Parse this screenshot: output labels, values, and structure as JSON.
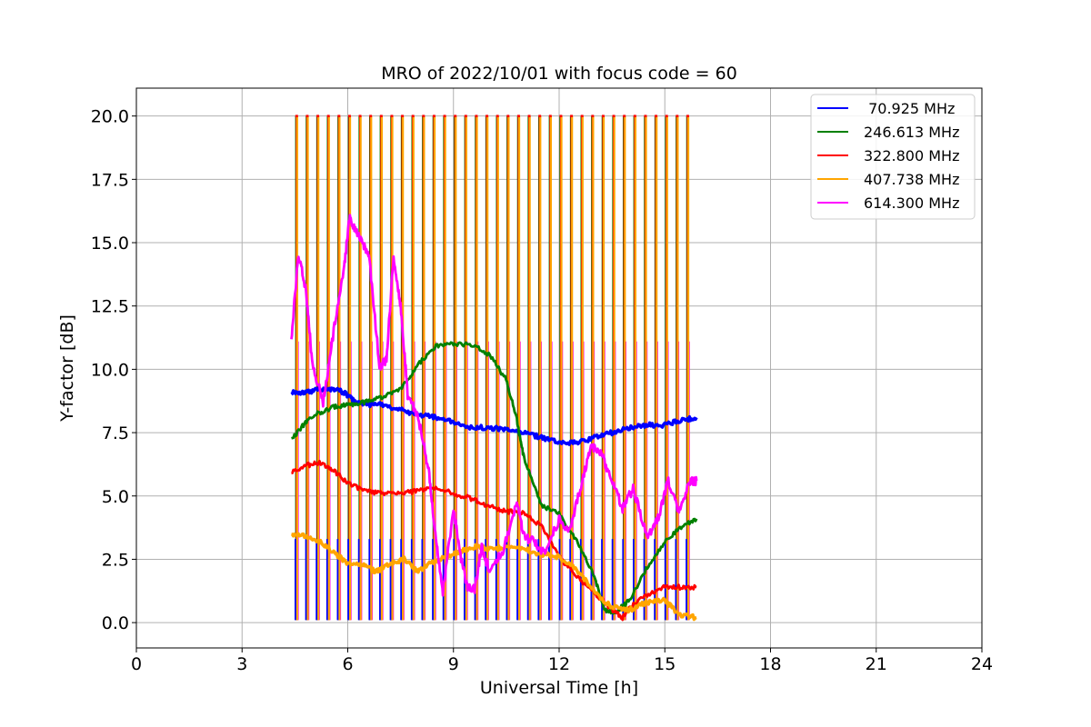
{
  "chart_data": {
    "type": "line",
    "title": "MRO of 2022/10/01 with focus code = 60",
    "xlabel": "Universal Time [h]",
    "ylabel": "Y-factor [dB]",
    "xlim": [
      0,
      24
    ],
    "ylim": [
      -1.0,
      21.1
    ],
    "xticks": [
      0,
      3,
      6,
      9,
      12,
      15,
      18,
      21,
      24
    ],
    "xtick_labels": [
      "0",
      "3",
      "6",
      "9",
      "12",
      "15",
      "18",
      "21",
      "24"
    ],
    "yticks": [
      0.0,
      2.5,
      5.0,
      7.5,
      10.0,
      12.5,
      15.0,
      17.5,
      20.0
    ],
    "ytick_labels": [
      "0.0",
      "2.5",
      "5.0",
      "7.5",
      "10.0",
      "12.5",
      "15.0",
      "17.5",
      "20.0"
    ],
    "grid": true,
    "legend_position": "top-right",
    "spikes": {
      "x_start": 4.55,
      "x_end": 15.75,
      "interval": 0.3,
      "top": 20.0,
      "bottom": 0.1
    },
    "series": [
      {
        "name": " 70.925 MHz",
        "color": "#0000ff",
        "spike_top": 3.3,
        "spike_bottom": 0.1,
        "x": [
          4.4,
          4.8,
          5.2,
          5.6,
          5.9,
          6.2,
          6.6,
          7.0,
          7.5,
          8.0,
          8.5,
          9.0,
          9.5,
          10.0,
          10.5,
          11.0,
          11.5,
          12.0,
          12.5,
          13.0,
          13.5,
          14.0,
          14.5,
          15.0,
          15.5,
          15.9
        ],
        "y": [
          9.1,
          9.1,
          9.2,
          9.2,
          9.1,
          8.7,
          8.6,
          8.6,
          8.4,
          8.2,
          8.1,
          7.9,
          7.7,
          7.7,
          7.6,
          7.5,
          7.3,
          7.1,
          7.1,
          7.3,
          7.5,
          7.7,
          7.8,
          7.8,
          8.0,
          8.1
        ]
      },
      {
        "name": "246.613 MHz",
        "color": "#008000",
        "x": [
          4.4,
          4.8,
          5.2,
          5.6,
          6.0,
          6.5,
          7.0,
          7.5,
          8.0,
          8.5,
          9.0,
          9.5,
          10.0,
          10.5,
          10.8,
          11.0,
          11.5,
          12.0,
          12.5,
          13.0,
          13.3,
          13.6,
          14.0,
          14.5,
          15.0,
          15.5,
          15.9
        ],
        "y": [
          7.2,
          7.9,
          8.3,
          8.5,
          8.6,
          8.7,
          8.9,
          9.2,
          10.2,
          10.9,
          11.0,
          11.0,
          10.6,
          9.6,
          8.0,
          6.5,
          4.6,
          4.3,
          3.2,
          1.8,
          0.5,
          0.4,
          0.9,
          2.2,
          3.2,
          3.8,
          4.1
        ]
      },
      {
        "name": "322.800 MHz",
        "color": "#ff0000",
        "x": [
          4.4,
          4.8,
          5.2,
          5.6,
          6.0,
          6.5,
          7.0,
          7.5,
          8.0,
          8.5,
          9.0,
          9.5,
          10.0,
          10.5,
          11.0,
          11.5,
          12.0,
          12.5,
          13.0,
          13.5,
          13.8,
          14.0,
          14.5,
          15.0,
          15.5,
          15.9
        ],
        "y": [
          5.9,
          6.2,
          6.3,
          6.0,
          5.5,
          5.2,
          5.1,
          5.1,
          5.2,
          5.3,
          5.1,
          4.9,
          4.6,
          4.4,
          4.3,
          3.8,
          2.6,
          1.8,
          1.2,
          0.5,
          0.2,
          0.6,
          1.1,
          1.4,
          1.4,
          1.4
        ]
      },
      {
        "name": "407.738 MHz",
        "color": "#ffa500",
        "x": [
          4.4,
          4.8,
          5.2,
          5.6,
          6.0,
          6.4,
          6.8,
          7.2,
          7.6,
          8.0,
          8.4,
          8.8,
          9.2,
          9.6,
          10.0,
          10.5,
          11.0,
          11.5,
          12.0,
          12.5,
          13.0,
          13.5,
          14.0,
          14.5,
          15.0,
          15.4,
          15.9
        ],
        "y": [
          3.5,
          3.4,
          3.2,
          2.8,
          2.3,
          2.3,
          2.0,
          2.3,
          2.5,
          2.0,
          2.4,
          2.6,
          2.8,
          3.0,
          2.9,
          3.0,
          2.9,
          2.7,
          2.6,
          2.1,
          1.2,
          0.6,
          0.5,
          0.8,
          0.9,
          0.3,
          0.2
        ]
      },
      {
        "name": "614.300 MHz",
        "color": "#ff00ff",
        "spike_top": 11.1,
        "x": [
          4.4,
          4.6,
          4.8,
          5.0,
          5.3,
          5.6,
          5.9,
          6.05,
          6.2,
          6.4,
          6.6,
          6.9,
          7.1,
          7.3,
          7.5,
          7.7,
          8.0,
          8.3,
          8.5,
          8.7,
          9.0,
          9.2,
          9.4,
          9.6,
          9.8,
          10.0,
          10.4,
          10.8,
          11.0,
          11.3,
          11.6,
          12.0,
          12.3,
          12.6,
          12.9,
          13.2,
          13.5,
          13.8,
          14.1,
          14.5,
          14.8,
          15.1,
          15.4,
          15.7,
          15.9
        ],
        "y": [
          11.2,
          14.6,
          13.2,
          10.2,
          8.7,
          11.5,
          14.0,
          16.0,
          15.5,
          15.0,
          14.6,
          10.1,
          10.4,
          14.5,
          12.5,
          9.0,
          8.1,
          6.0,
          3.3,
          1.2,
          4.5,
          2.6,
          1.4,
          1.3,
          3.0,
          2.1,
          2.8,
          4.8,
          3.4,
          3.2,
          2.7,
          4.1,
          3.6,
          5.3,
          7.0,
          6.6,
          5.7,
          4.5,
          5.3,
          3.4,
          4.1,
          5.6,
          4.3,
          5.6,
          5.6
        ]
      }
    ]
  }
}
